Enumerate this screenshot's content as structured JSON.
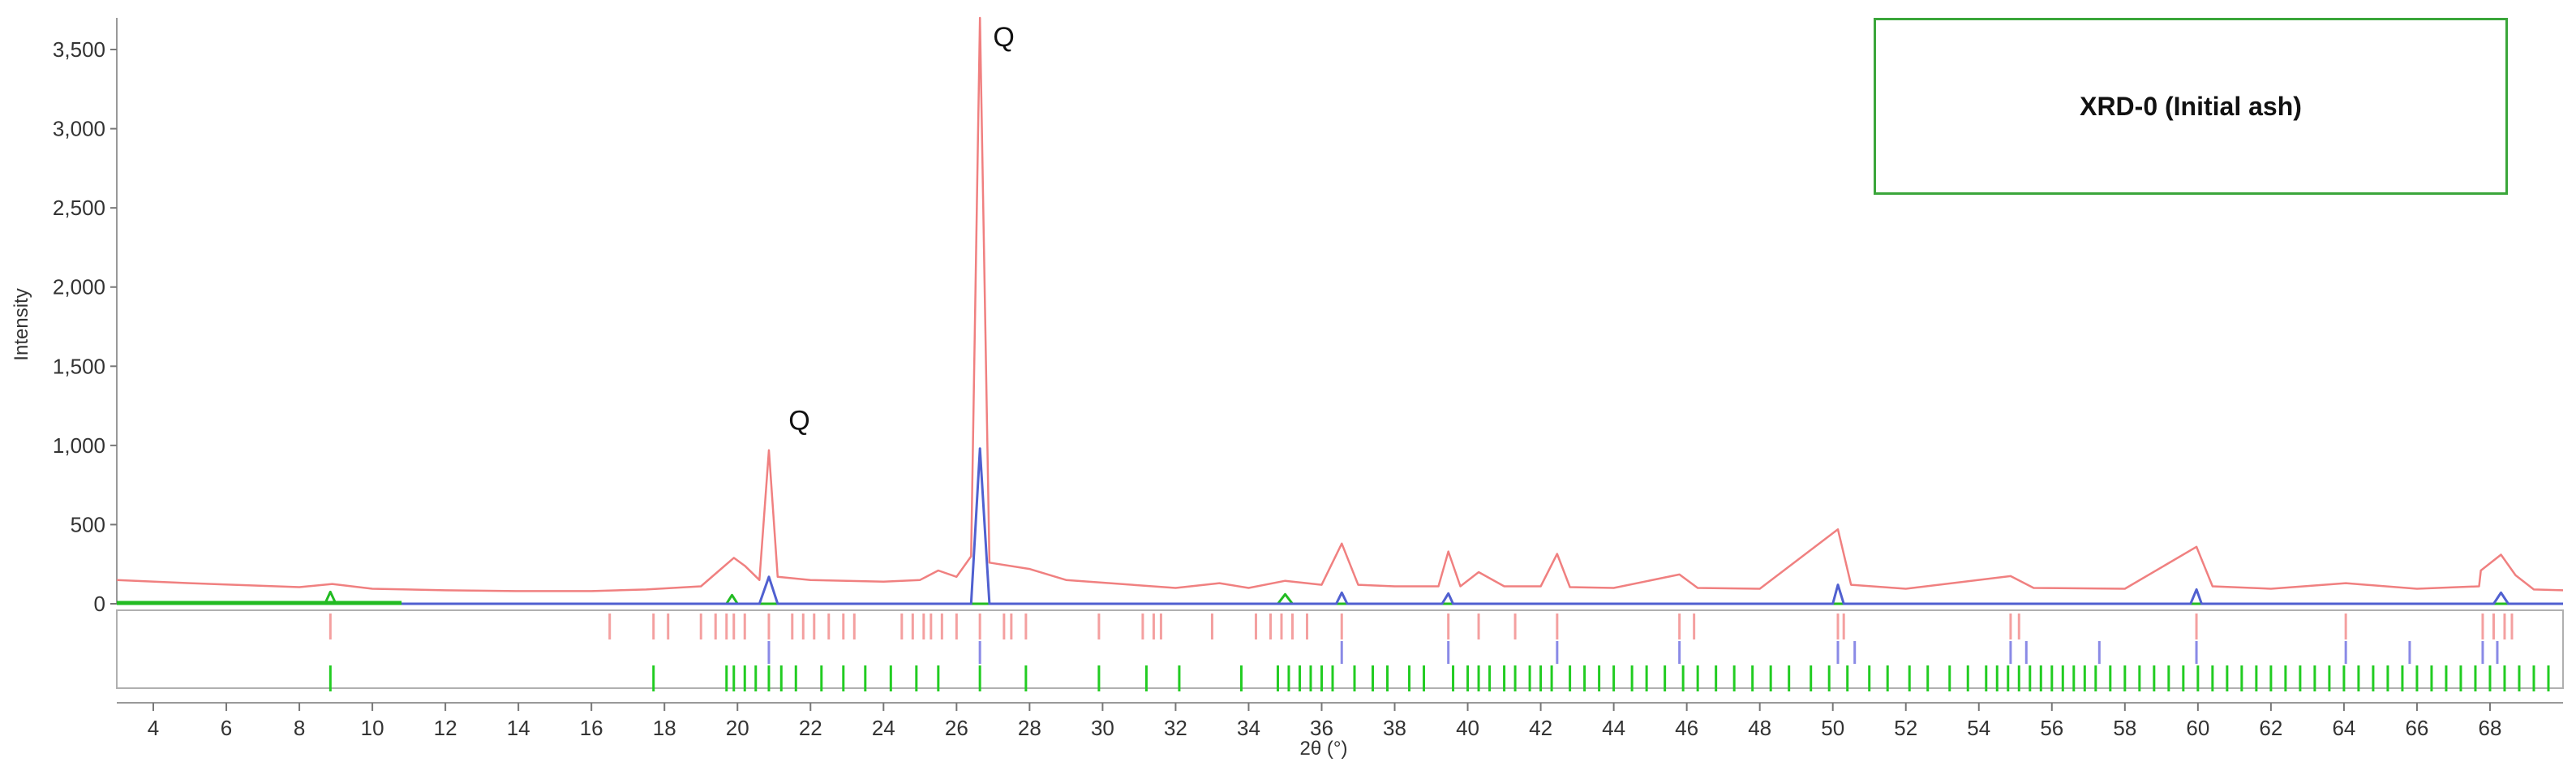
{
  "chart_data": {
    "type": "line",
    "title": "",
    "xlabel": "2θ (°)",
    "ylabel": "Intensity",
    "xlim": [
      3,
      70
    ],
    "ylim": [
      0,
      3700
    ],
    "x_ticks": [
      4,
      6,
      8,
      10,
      12,
      14,
      16,
      18,
      20,
      22,
      24,
      26,
      28,
      30,
      32,
      34,
      36,
      38,
      40,
      42,
      44,
      46,
      48,
      50,
      52,
      54,
      56,
      58,
      60,
      62,
      64,
      66,
      68
    ],
    "y_ticks": [
      0,
      500,
      1000,
      1500,
      2000,
      2500,
      3000,
      3500
    ],
    "y_tick_labels": [
      "0",
      "500",
      "1,000",
      "1,500",
      "2,000",
      "2,500",
      "3,000",
      "3,500"
    ],
    "legend_text": "XRD-0 (Initial ash)",
    "legend_placement": "top-right",
    "annotations": [
      {
        "text": "Q",
        "x": 21.4,
        "y": 1100
      },
      {
        "text": "Q",
        "x": 27.0,
        "y": 3520
      }
    ],
    "series": [
      {
        "color": "#f08080",
        "points": [
          [
            3,
            150
          ],
          [
            5,
            130
          ],
          [
            8,
            105
          ],
          [
            8.9,
            125
          ],
          [
            10,
            95
          ],
          [
            12,
            85
          ],
          [
            14,
            80
          ],
          [
            16,
            80
          ],
          [
            17.5,
            90
          ],
          [
            19,
            110
          ],
          [
            19.9,
            290
          ],
          [
            20.2,
            240
          ],
          [
            20.6,
            150
          ],
          [
            20.86,
            970
          ],
          [
            21.1,
            170
          ],
          [
            22,
            150
          ],
          [
            24,
            140
          ],
          [
            25,
            150
          ],
          [
            25.5,
            210
          ],
          [
            26,
            170
          ],
          [
            26.4,
            300
          ],
          [
            26.64,
            3700
          ],
          [
            26.9,
            260
          ],
          [
            28,
            220
          ],
          [
            29,
            150
          ],
          [
            32,
            100
          ],
          [
            33.2,
            130
          ],
          [
            34,
            100
          ],
          [
            35,
            145
          ],
          [
            36,
            120
          ],
          [
            36.55,
            380
          ],
          [
            37,
            120
          ],
          [
            38,
            110
          ],
          [
            39.2,
            110
          ],
          [
            39.47,
            330
          ],
          [
            39.8,
            110
          ],
          [
            40.3,
            200
          ],
          [
            41,
            110
          ],
          [
            42,
            110
          ],
          [
            42.45,
            315
          ],
          [
            42.8,
            105
          ],
          [
            44,
            100
          ],
          [
            45.8,
            185
          ],
          [
            46.3,
            100
          ],
          [
            48,
            95
          ],
          [
            50.14,
            470
          ],
          [
            50.5,
            120
          ],
          [
            52,
            95
          ],
          [
            54.87,
            175
          ],
          [
            55.5,
            100
          ],
          [
            58,
            95
          ],
          [
            59.96,
            360
          ],
          [
            60.4,
            110
          ],
          [
            62,
            95
          ],
          [
            64.05,
            130
          ],
          [
            66,
            95
          ],
          [
            67.7,
            110
          ],
          [
            67.75,
            210
          ],
          [
            68.3,
            310
          ],
          [
            68.7,
            180
          ],
          [
            69.2,
            90
          ],
          [
            70,
            85
          ]
        ]
      },
      {
        "color": "#5060d0",
        "points": [
          [
            3,
            0
          ],
          [
            20.6,
            0
          ],
          [
            20.86,
            170
          ],
          [
            21.1,
            0
          ],
          [
            26.4,
            0
          ],
          [
            26.64,
            980
          ],
          [
            26.9,
            0
          ],
          [
            36.4,
            0
          ],
          [
            36.55,
            70
          ],
          [
            36.7,
            0
          ],
          [
            39.3,
            0
          ],
          [
            39.47,
            65
          ],
          [
            39.6,
            0
          ],
          [
            50,
            0
          ],
          [
            50.14,
            120
          ],
          [
            50.3,
            0
          ],
          [
            59.8,
            0
          ],
          [
            59.96,
            90
          ],
          [
            60.1,
            0
          ],
          [
            68.1,
            0
          ],
          [
            68.3,
            70
          ],
          [
            68.5,
            0
          ],
          [
            70,
            0
          ]
        ]
      },
      {
        "color": "#22bb22",
        "points": [
          [
            3,
            0
          ],
          [
            8.7,
            0
          ],
          [
            8.85,
            75
          ],
          [
            9.0,
            0
          ],
          [
            19.7,
            0
          ],
          [
            19.85,
            55
          ],
          [
            20.0,
            0
          ],
          [
            34.8,
            0
          ],
          [
            35.0,
            60
          ],
          [
            35.2,
            0
          ],
          [
            70,
            0
          ]
        ]
      }
    ],
    "phase_markers": [
      {
        "color": "#f4a0a0",
        "row": 1,
        "positions": [
          8.85,
          16.5,
          17.7,
          18.1,
          19.0,
          19.4,
          19.7,
          19.9,
          20.2,
          20.86,
          21.5,
          21.8,
          22.1,
          22.5,
          22.9,
          23.2,
          24.5,
          24.8,
          25.1,
          25.3,
          25.6,
          26.0,
          26.64,
          27.3,
          27.5,
          27.9,
          29.9,
          31.1,
          31.4,
          31.6,
          33.0,
          34.2,
          34.6,
          34.9,
          35.2,
          35.6,
          36.55,
          39.47,
          40.3,
          41.3,
          42.45,
          45.8,
          46.2,
          50.14,
          50.3,
          54.87,
          55.1,
          59.96,
          64.05,
          67.8,
          68.1,
          68.4,
          68.6
        ]
      },
      {
        "color": "#8a8ae6",
        "row": 2,
        "positions": [
          20.86,
          26.64,
          36.55,
          39.47,
          42.45,
          45.8,
          50.14,
          50.6,
          54.87,
          55.3,
          57.3,
          59.96,
          64.05,
          65.8,
          67.8,
          68.2
        ]
      },
      {
        "color": "#22cc22",
        "row": 3,
        "positions": [
          8.85,
          17.7,
          19.7,
          19.9,
          20.2,
          20.5,
          20.86,
          21.2,
          21.6,
          22.3,
          22.9,
          23.5,
          24.2,
          24.9,
          25.5,
          26.64,
          27.9,
          29.9,
          31.2,
          32.1,
          33.8,
          34.8,
          35.1,
          35.4,
          35.7,
          36.0,
          36.3,
          36.9,
          37.4,
          37.8,
          38.4,
          38.8,
          39.6,
          40.0,
          40.3,
          40.6,
          41.0,
          41.3,
          41.7,
          42.0,
          42.3,
          42.8,
          43.2,
          43.6,
          44.0,
          44.5,
          44.9,
          45.4,
          45.9,
          46.3,
          46.8,
          47.3,
          47.8,
          48.3,
          48.8,
          49.4,
          49.9,
          50.4,
          51.0,
          51.5,
          52.1,
          52.6,
          53.2,
          53.7,
          54.2,
          54.5,
          54.8,
          55.1,
          55.4,
          55.7,
          56.0,
          56.3,
          56.6,
          56.9,
          57.2,
          57.6,
          58.0,
          58.4,
          58.8,
          59.2,
          59.6,
          60.0,
          60.4,
          60.8,
          61.2,
          61.6,
          62.0,
          62.4,
          62.8,
          63.2,
          63.6,
          64.0,
          64.4,
          64.8,
          65.2,
          65.6,
          66.0,
          66.4,
          66.8,
          67.2,
          67.6,
          68.0,
          68.4,
          68.8,
          69.2,
          69.6
        ]
      }
    ]
  }
}
